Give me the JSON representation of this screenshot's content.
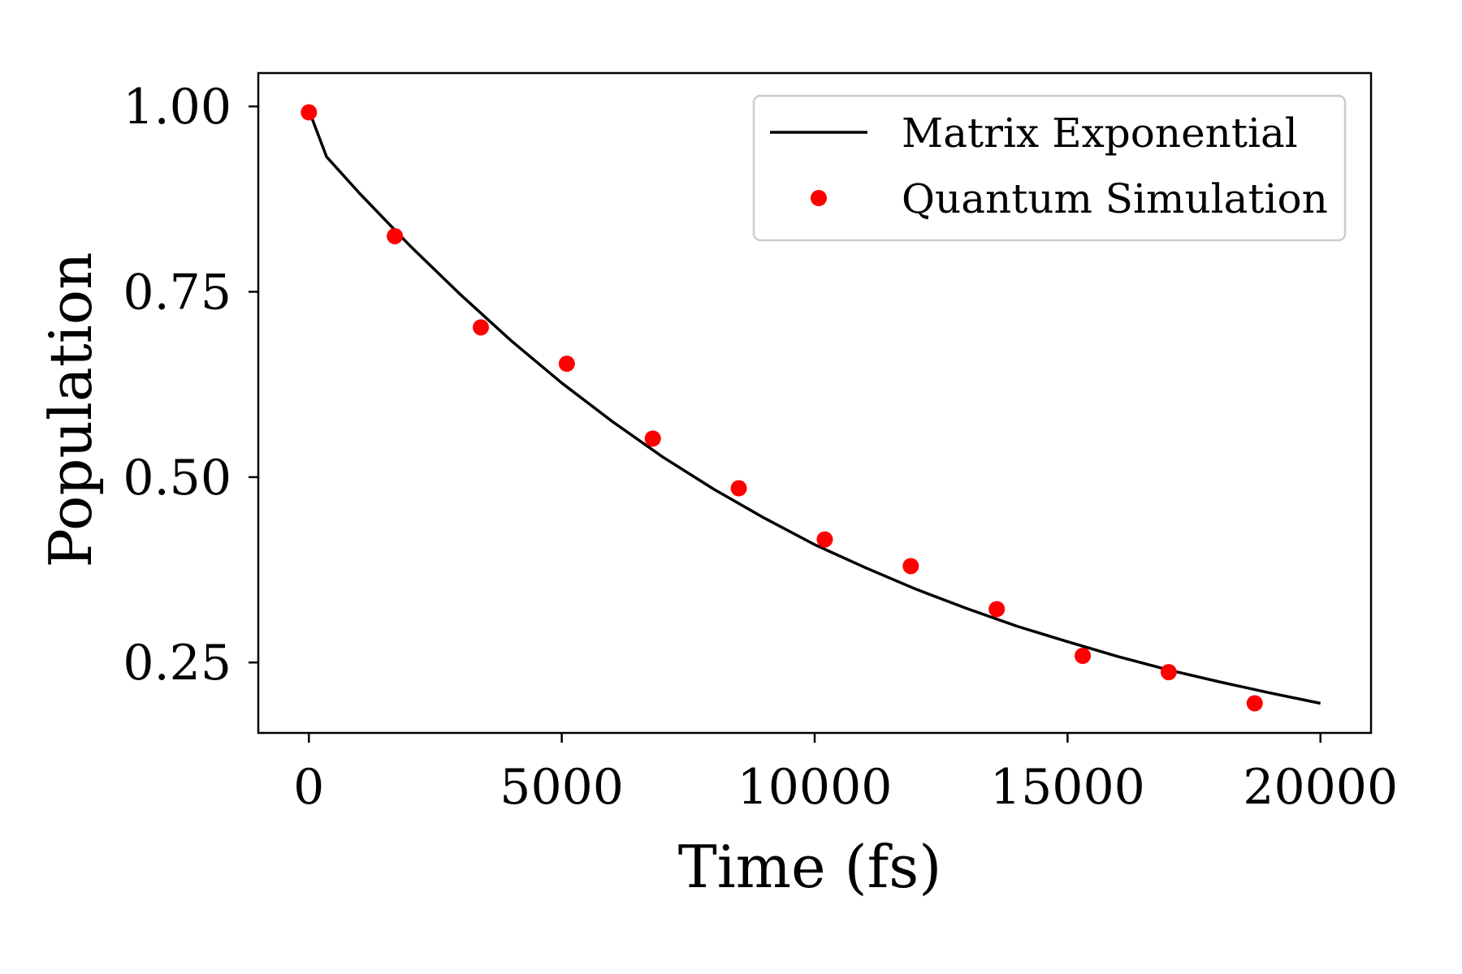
{
  "chart_data": {
    "type": "line",
    "xlabel": "Time (fs)",
    "ylabel": "Population",
    "xlim": [
      -1000,
      21000
    ],
    "ylim": [
      0.155,
      1.045
    ],
    "x_ticks": [
      0,
      5000,
      10000,
      15000,
      20000
    ],
    "x_tick_labels": [
      "0",
      "5000",
      "10000",
      "15000",
      "20000"
    ],
    "y_ticks": [
      0.25,
      0.5,
      0.75,
      1.0
    ],
    "y_tick_labels": [
      "0.25",
      "0.50",
      "0.75",
      "1.00"
    ],
    "grid": false,
    "legend_position": "top-right",
    "series": [
      {
        "name": "Matrix Exponential",
        "kind": "line",
        "color": "#000000",
        "x": [
          0,
          350,
          1000,
          2000,
          3000,
          4000,
          5000,
          6000,
          7000,
          8000,
          9000,
          10000,
          11000,
          12000,
          13000,
          14000,
          15000,
          16000,
          17000,
          18000,
          19000,
          20000
        ],
        "y": [
          0.995,
          0.932,
          0.883,
          0.812,
          0.746,
          0.684,
          0.627,
          0.575,
          0.527,
          0.484,
          0.445,
          0.409,
          0.378,
          0.349,
          0.323,
          0.299,
          0.278,
          0.258,
          0.24,
          0.224,
          0.209,
          0.195
        ]
      },
      {
        "name": "Quantum Simulation",
        "kind": "scatter",
        "color": "#ff0000",
        "x": [
          0,
          1700,
          3400,
          5100,
          6800,
          8500,
          10200,
          11900,
          13600,
          15300,
          17000,
          18700
        ],
        "y": [
          0.992,
          0.825,
          0.702,
          0.653,
          0.552,
          0.485,
          0.416,
          0.38,
          0.322,
          0.259,
          0.237,
          0.195
        ]
      }
    ]
  }
}
